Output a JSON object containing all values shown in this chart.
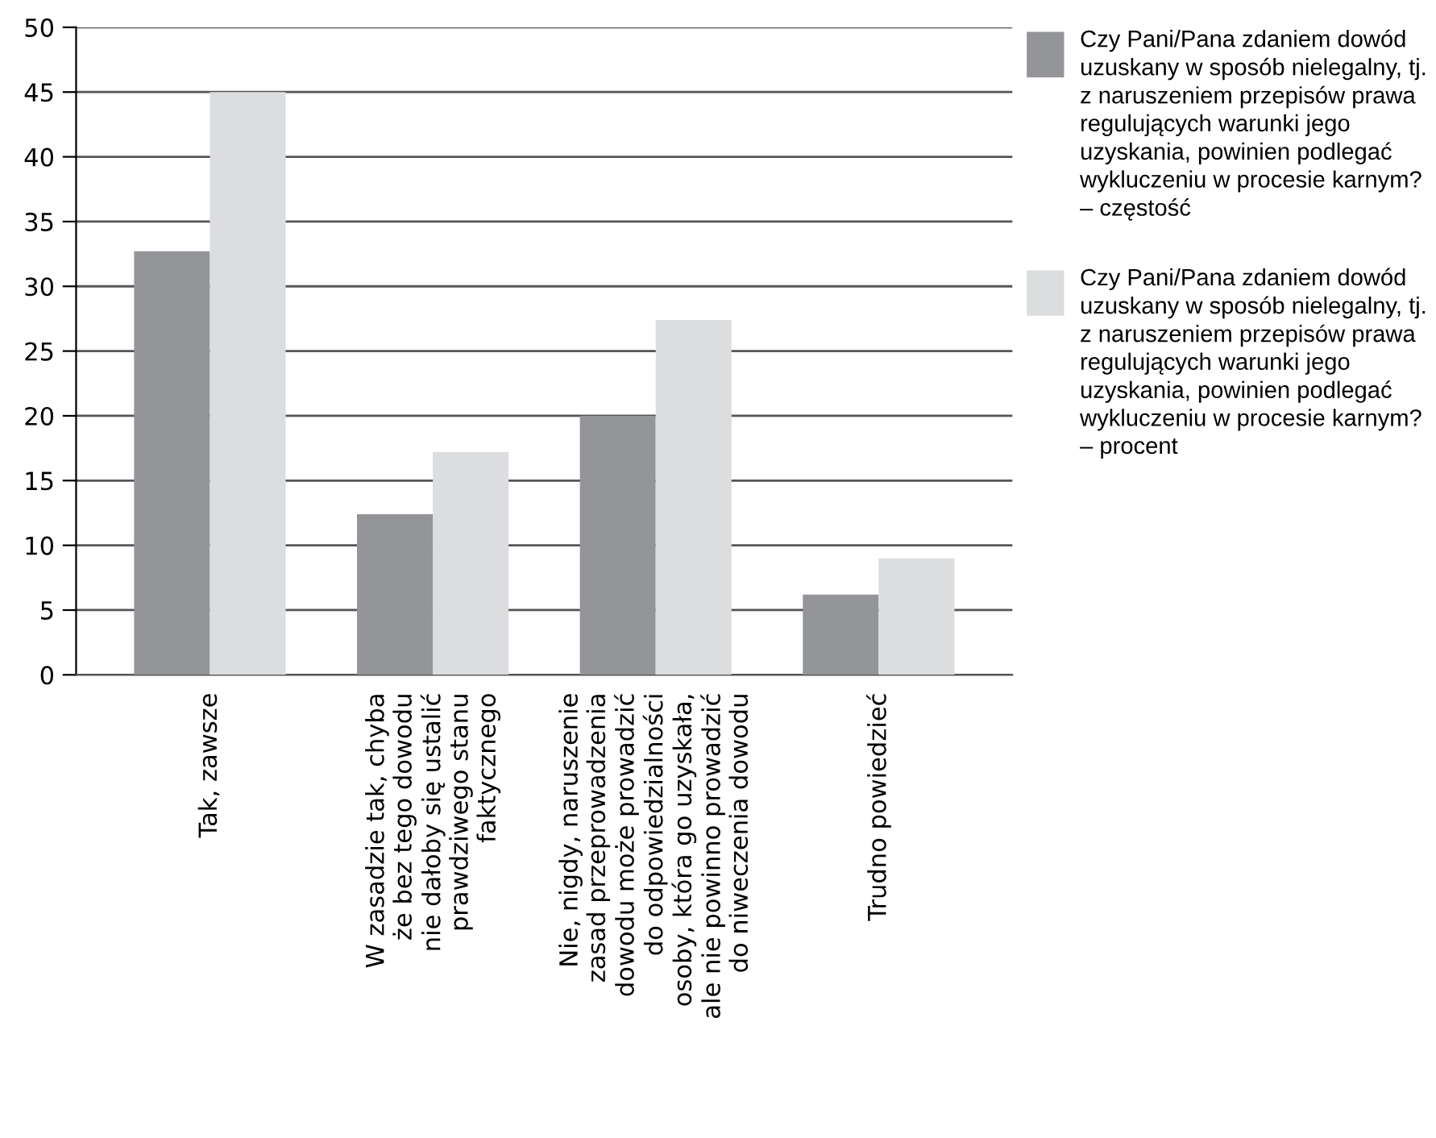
{
  "chart_data": {
    "type": "bar",
    "categories": [
      "Tak, zawsze",
      "W zasadzie tak, chyba\nże bez tego dowodu\nnie dałoby się ustalić\nprawdziwego stanu\nfaktycznego",
      "Nie, nigdy, naruszenie\nzasad przeprowadzenia\ndowodu może prowadzić\ndo odpowiedzialności\nosoby, która go uzyskała,\nale nie powinno prowadzić\ndo niweczenia dowodu",
      "Trudno powiedzieć"
    ],
    "series": [
      {
        "name": "Czy Pani/Pana zdaniem dowód uzuskany w sposób nielegalny, tj. z naruszeniem przepisów prawa regulujących warunki jego uzyskania, powinien podlegać wykluczeniu w procesie karnym? – częstość",
        "color": "#939598",
        "values": [
          32.7,
          12.4,
          20.0,
          6.2
        ]
      },
      {
        "name": "Czy Pani/Pana zdaniem dowód uzuskany w sposób nielegalny, tj. z naruszeniem przepisów prawa regulujących warunki jego uzyskania, powinien podlegać wykluczeniu w procesie karnym? – procent",
        "color": "#dcdddf",
        "values": [
          45.0,
          17.2,
          27.4,
          9.0
        ]
      }
    ],
    "ylim": [
      0,
      50
    ],
    "yticks": [
      0,
      5,
      10,
      15,
      20,
      25,
      30,
      35,
      40,
      45,
      50
    ],
    "grid": "y",
    "legend": "top right"
  }
}
